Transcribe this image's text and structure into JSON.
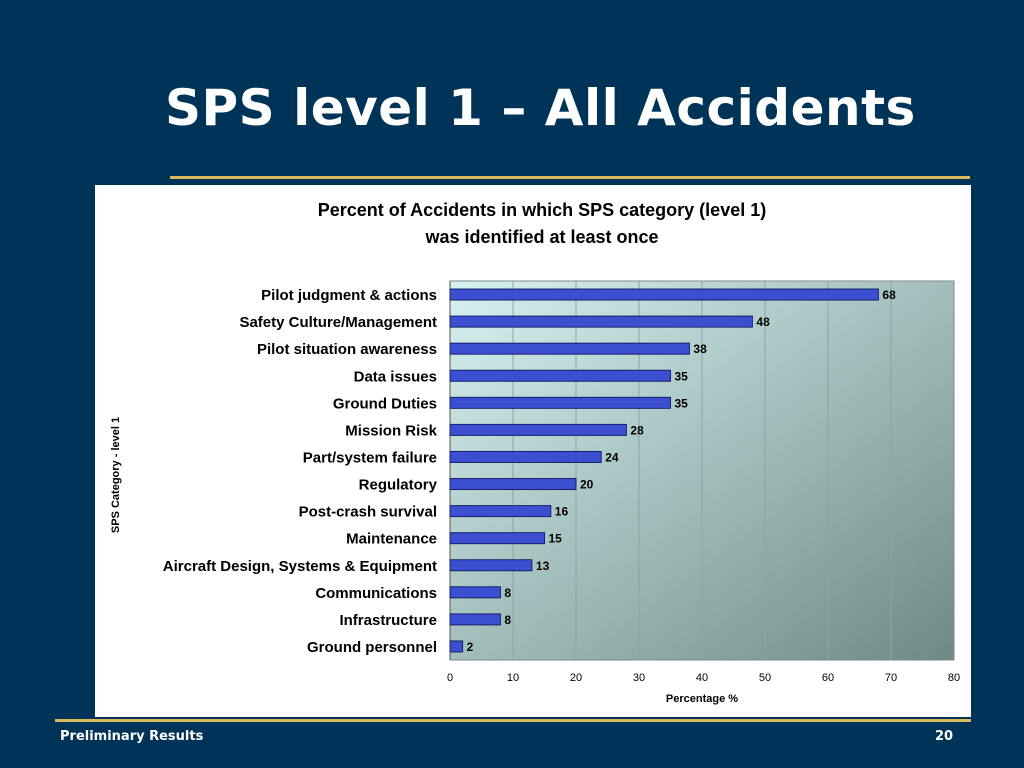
{
  "slide": {
    "title": "SPS level 1 – All Accidents",
    "footer_text": "Preliminary Results",
    "page_number": "20"
  },
  "colors": {
    "background": "#003358",
    "accent_rule": "#d9b95a",
    "bar_fill": "#3d4fd1",
    "bar_stroke": "#16206b",
    "plot_gradient_start": "#d7f2f2",
    "plot_gradient_end": "#6e8a84"
  },
  "chart_data": {
    "type": "bar",
    "orientation": "horizontal",
    "title_lines": [
      "Percent of Accidents in which SPS category (level 1)",
      "was identified at least once"
    ],
    "xlabel": "Percentage %",
    "ylabel": "SPS Category - level 1",
    "xlim": [
      0,
      80
    ],
    "xticks": [
      0,
      10,
      20,
      30,
      40,
      50,
      60,
      70,
      80
    ],
    "grid": "vertical",
    "legend": "none",
    "categories": [
      "Pilot judgment & actions",
      "Safety Culture/Management",
      "Pilot situation awareness",
      "Data issues",
      "Ground Duties",
      "Mission Risk",
      "Part/system failure",
      "Regulatory",
      "Post-crash survival",
      "Maintenance",
      "Aircraft Design, Systems & Equipment",
      "Communications",
      "Infrastructure",
      "Ground personnel"
    ],
    "values": [
      68,
      48,
      38,
      35,
      35,
      28,
      24,
      20,
      16,
      15,
      13,
      8,
      8,
      2
    ],
    "data_labels": [
      "68",
      "48",
      "38",
      "35",
      "35",
      "28",
      "24",
      "20",
      "16",
      "15",
      "13",
      "8",
      "8",
      "2"
    ]
  }
}
